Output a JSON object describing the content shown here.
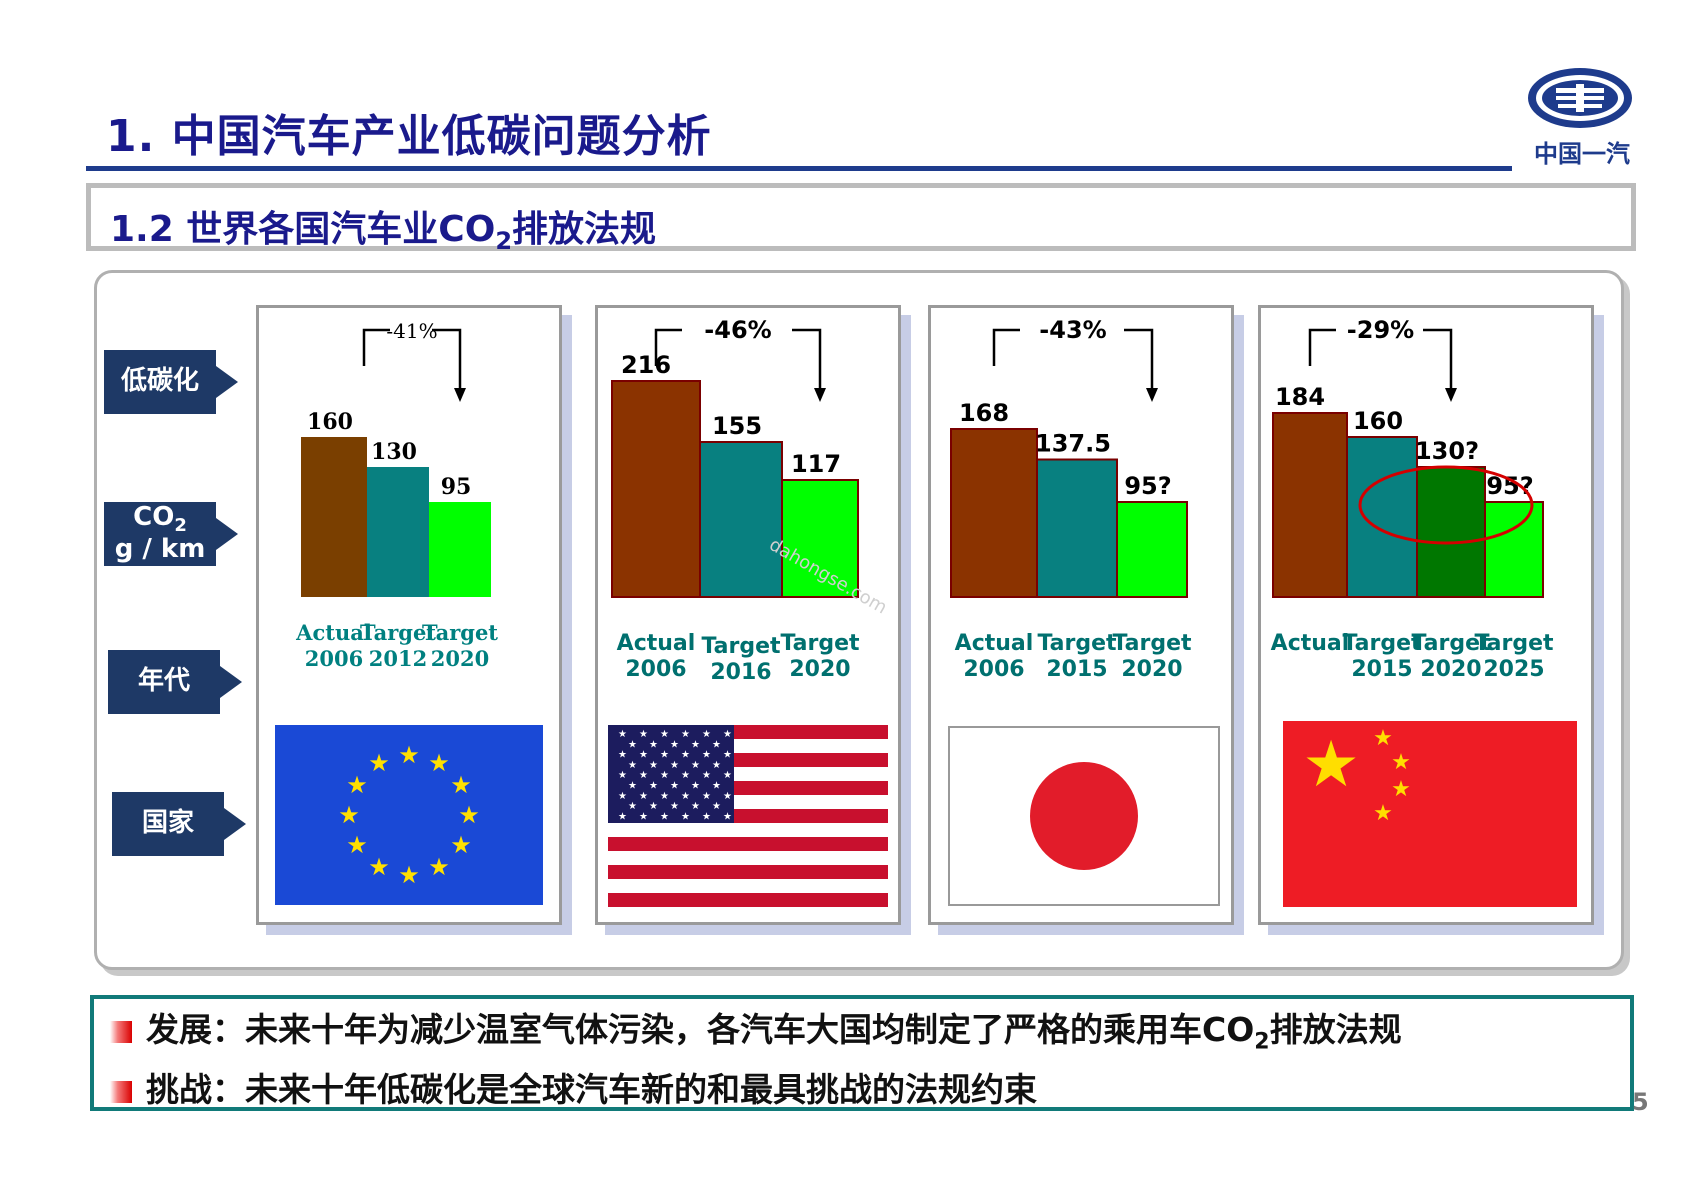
{
  "title": "1. 中国汽车产业低碳问题分析",
  "logo_text": "中国一汽",
  "subtitle": {
    "prefix": "1.2 世界各国汽车业CO",
    "sub": "2",
    "suffix": "排放法规"
  },
  "row_labels": {
    "low_carbon": "低碳化",
    "co2_line1": "CO",
    "co2_sub": "2",
    "co2_line2": "g / km",
    "era": "年代",
    "country": "国家"
  },
  "watermark": "dahongse.com",
  "colors": {
    "actual": "#8b3300",
    "target_teal": "#088080",
    "target_green": "#00ff00",
    "target_darkgreen": "#007700",
    "eu_actual": "#7a3f00"
  },
  "chart_data": [
    {
      "type": "bar",
      "country": "EU",
      "flag": "eu-flag",
      "categories": [
        "Actual 2006",
        "Target 2012",
        "Target 2020"
      ],
      "values": [
        160,
        130,
        95
      ],
      "value_labels": [
        "160",
        "130",
        "95"
      ],
      "reduction": "-41%",
      "label_color": "#008080"
    },
    {
      "type": "bar",
      "country": "USA",
      "flag": "us-flag",
      "categories": [
        "Actual 2006",
        "Target 2016",
        "Target 2020"
      ],
      "values": [
        216,
        155,
        117
      ],
      "value_labels": [
        "216",
        "155",
        "117"
      ],
      "reduction": "-46%",
      "label_color": "#00706f"
    },
    {
      "type": "bar",
      "country": "Japan",
      "flag": "japan-flag",
      "categories": [
        "Actual 2006",
        "Target 2015",
        "Target 2020"
      ],
      "values": [
        168,
        137.5,
        95
      ],
      "value_labels": [
        "168",
        "137.5",
        "95?"
      ],
      "reduction": "-43%",
      "label_color": "#00706f"
    },
    {
      "type": "bar",
      "country": "China",
      "flag": "china-flag",
      "categories": [
        "Actual",
        "Target 2015",
        "Target 2020",
        "Target 2025"
      ],
      "values": [
        184,
        160,
        130,
        95
      ],
      "value_labels": [
        "184",
        "160",
        "130?",
        "95?"
      ],
      "reduction": "-29%",
      "label_color": "#00706f"
    }
  ],
  "notes": [
    {
      "label": "发展：",
      "text_prefix": "未来十年为减少温室气体污染，各汽车大国均制定了严格的乘用车CO",
      "sub": "2",
      "text_suffix": "排放法规"
    },
    {
      "label": "挑战：",
      "text": "未来十年低碳化是全球汽车新的和最具挑战的法规约束"
    }
  ],
  "page_number": "5"
}
